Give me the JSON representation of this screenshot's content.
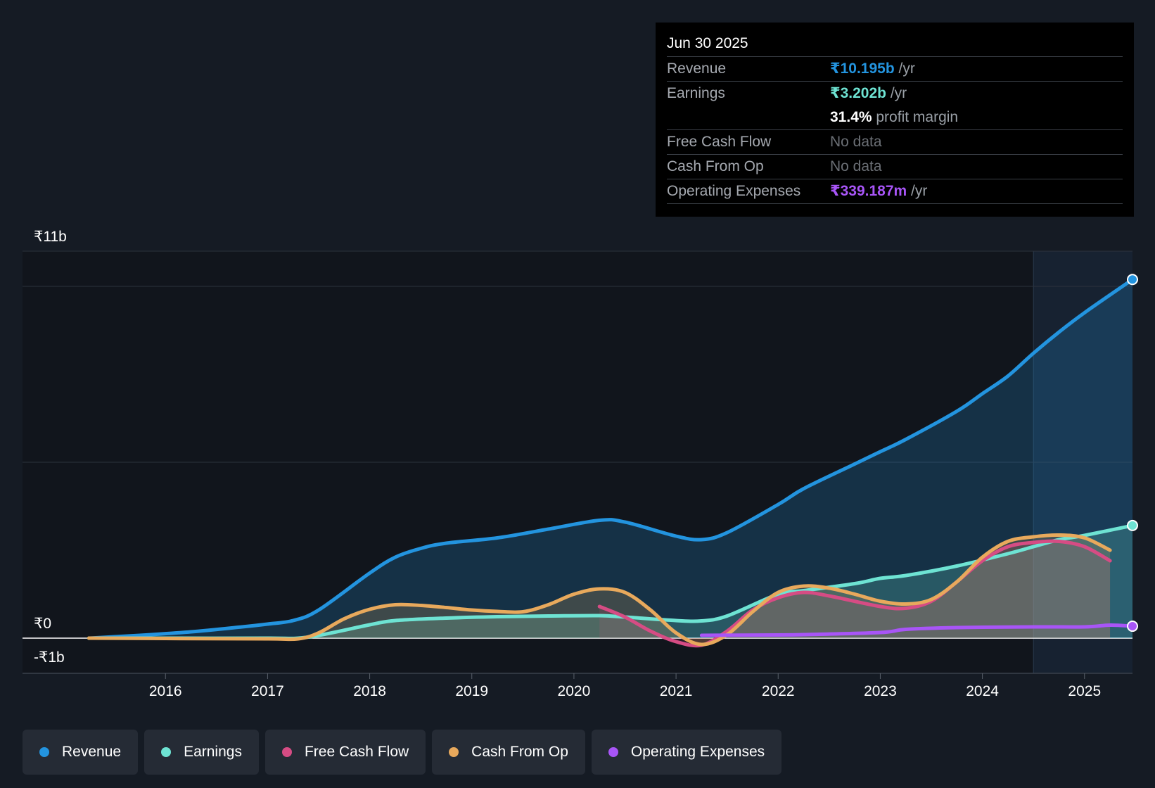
{
  "tooltip": {
    "date": "Jun 30 2025",
    "rows": [
      {
        "label": "Revenue",
        "value": "₹10.195b",
        "unit": " /yr",
        "color": "#2394df"
      },
      {
        "label": "Earnings",
        "value": "₹3.202b",
        "unit": " /yr",
        "color": "#6ee3d3"
      },
      {
        "label": "",
        "value": "31.4%",
        "unit": " profit margin",
        "color": "#ffffff"
      },
      {
        "label": "Free Cash Flow",
        "value": "No data",
        "unit": "",
        "color": "#6b6f75"
      },
      {
        "label": "Cash From Op",
        "value": "No data",
        "unit": "",
        "color": "#6b6f75"
      },
      {
        "label": "Operating Expenses",
        "value": "₹339.187m",
        "unit": " /yr",
        "color": "#a855f7"
      }
    ]
  },
  "legend": [
    {
      "label": "Revenue",
      "color": "#2394df"
    },
    {
      "label": "Earnings",
      "color": "#6ee3d3"
    },
    {
      "label": "Free Cash Flow",
      "color": "#d64c84"
    },
    {
      "label": "Cash From Op",
      "color": "#e8a95c"
    },
    {
      "label": "Operating Expenses",
      "color": "#a855f7"
    }
  ],
  "chart_data": {
    "type": "area",
    "y_unit": "₹ billions",
    "ylim": [
      -1,
      11
    ],
    "ytick_labels": [
      {
        "value": 11,
        "label": "₹11b"
      },
      {
        "value": 0,
        "label": "₹0"
      },
      {
        "value": -1,
        "label": "-₹1b"
      }
    ],
    "xlim": [
      2014.6,
      2025.47
    ],
    "xtick_labels": [
      "2016",
      "2017",
      "2018",
      "2019",
      "2020",
      "2021",
      "2022",
      "2023",
      "2024",
      "2025"
    ],
    "forecast_start": 2024.5,
    "series": [
      {
        "name": "Revenue",
        "color": "#2394df",
        "points": [
          [
            2015.25,
            0.0
          ],
          [
            2015.75,
            0.08
          ],
          [
            2016.25,
            0.18
          ],
          [
            2016.75,
            0.32
          ],
          [
            2017.0,
            0.4
          ],
          [
            2017.25,
            0.5
          ],
          [
            2017.5,
            0.8
          ],
          [
            2018.0,
            1.85
          ],
          [
            2018.25,
            2.3
          ],
          [
            2018.5,
            2.55
          ],
          [
            2018.75,
            2.7
          ],
          [
            2019.25,
            2.85
          ],
          [
            2019.75,
            3.1
          ],
          [
            2020.25,
            3.35
          ],
          [
            2020.5,
            3.3
          ],
          [
            2021.0,
            2.9
          ],
          [
            2021.25,
            2.8
          ],
          [
            2021.5,
            3.0
          ],
          [
            2022.0,
            3.8
          ],
          [
            2022.25,
            4.25
          ],
          [
            2022.75,
            4.95
          ],
          [
            2023.0,
            5.3
          ],
          [
            2023.25,
            5.65
          ],
          [
            2023.75,
            6.45
          ],
          [
            2024.0,
            6.95
          ],
          [
            2024.25,
            7.45
          ],
          [
            2024.5,
            8.1
          ],
          [
            2024.75,
            8.7
          ],
          [
            2025.0,
            9.25
          ],
          [
            2025.47,
            10.195
          ]
        ]
      },
      {
        "name": "Earnings",
        "color": "#6ee3d3",
        "points": [
          [
            2015.25,
            0.0
          ],
          [
            2016.0,
            0.0
          ],
          [
            2017.0,
            0.0
          ],
          [
            2017.4,
            0.03
          ],
          [
            2018.0,
            0.38
          ],
          [
            2018.25,
            0.5
          ],
          [
            2018.75,
            0.57
          ],
          [
            2019.25,
            0.61
          ],
          [
            2019.75,
            0.63
          ],
          [
            2020.25,
            0.64
          ],
          [
            2020.5,
            0.6
          ],
          [
            2021.0,
            0.5
          ],
          [
            2021.25,
            0.49
          ],
          [
            2021.5,
            0.63
          ],
          [
            2022.0,
            1.25
          ],
          [
            2022.25,
            1.35
          ],
          [
            2022.75,
            1.55
          ],
          [
            2023.0,
            1.7
          ],
          [
            2023.25,
            1.78
          ],
          [
            2023.75,
            2.05
          ],
          [
            2024.25,
            2.4
          ],
          [
            2024.5,
            2.6
          ],
          [
            2024.75,
            2.8
          ],
          [
            2025.0,
            2.92
          ],
          [
            2025.47,
            3.202
          ]
        ]
      },
      {
        "name": "Free Cash Flow",
        "color": "#d64c84",
        "points": [
          [
            2020.25,
            0.9
          ],
          [
            2020.5,
            0.6
          ],
          [
            2020.75,
            0.2
          ],
          [
            2021.0,
            -0.1
          ],
          [
            2021.25,
            -0.2
          ],
          [
            2021.5,
            0.2
          ],
          [
            2021.75,
            0.8
          ],
          [
            2022.0,
            1.15
          ],
          [
            2022.25,
            1.3
          ],
          [
            2022.5,
            1.2
          ],
          [
            2023.0,
            0.9
          ],
          [
            2023.25,
            0.85
          ],
          [
            2023.5,
            1.05
          ],
          [
            2023.75,
            1.6
          ],
          [
            2024.0,
            2.2
          ],
          [
            2024.25,
            2.6
          ],
          [
            2024.5,
            2.72
          ],
          [
            2024.75,
            2.75
          ],
          [
            2025.0,
            2.6
          ],
          [
            2025.25,
            2.2
          ]
        ]
      },
      {
        "name": "Cash From Op",
        "color": "#e8a95c",
        "points": [
          [
            2015.25,
            0.0
          ],
          [
            2016.0,
            -0.01
          ],
          [
            2017.0,
            -0.02
          ],
          [
            2017.3,
            -0.02
          ],
          [
            2017.5,
            0.15
          ],
          [
            2017.75,
            0.55
          ],
          [
            2018.0,
            0.82
          ],
          [
            2018.25,
            0.95
          ],
          [
            2018.5,
            0.93
          ],
          [
            2018.75,
            0.87
          ],
          [
            2019.0,
            0.8
          ],
          [
            2019.25,
            0.76
          ],
          [
            2019.5,
            0.75
          ],
          [
            2019.75,
            0.95
          ],
          [
            2020.0,
            1.25
          ],
          [
            2020.25,
            1.4
          ],
          [
            2020.5,
            1.3
          ],
          [
            2020.75,
            0.8
          ],
          [
            2021.0,
            0.15
          ],
          [
            2021.25,
            -0.18
          ],
          [
            2021.5,
            0.1
          ],
          [
            2021.75,
            0.75
          ],
          [
            2022.0,
            1.3
          ],
          [
            2022.25,
            1.48
          ],
          [
            2022.5,
            1.42
          ],
          [
            2022.75,
            1.25
          ],
          [
            2023.0,
            1.05
          ],
          [
            2023.25,
            0.97
          ],
          [
            2023.5,
            1.1
          ],
          [
            2023.75,
            1.6
          ],
          [
            2024.0,
            2.3
          ],
          [
            2024.25,
            2.75
          ],
          [
            2024.5,
            2.88
          ],
          [
            2024.75,
            2.93
          ],
          [
            2025.0,
            2.85
          ],
          [
            2025.25,
            2.5
          ]
        ]
      },
      {
        "name": "Operating Expenses",
        "color": "#a855f7",
        "points": [
          [
            2021.25,
            0.08
          ],
          [
            2022.0,
            0.09
          ],
          [
            2022.25,
            0.1
          ],
          [
            2023.0,
            0.16
          ],
          [
            2023.25,
            0.25
          ],
          [
            2023.75,
            0.3
          ],
          [
            2024.5,
            0.32
          ],
          [
            2025.0,
            0.32
          ],
          [
            2025.25,
            0.37
          ],
          [
            2025.47,
            0.339
          ]
        ]
      }
    ]
  }
}
